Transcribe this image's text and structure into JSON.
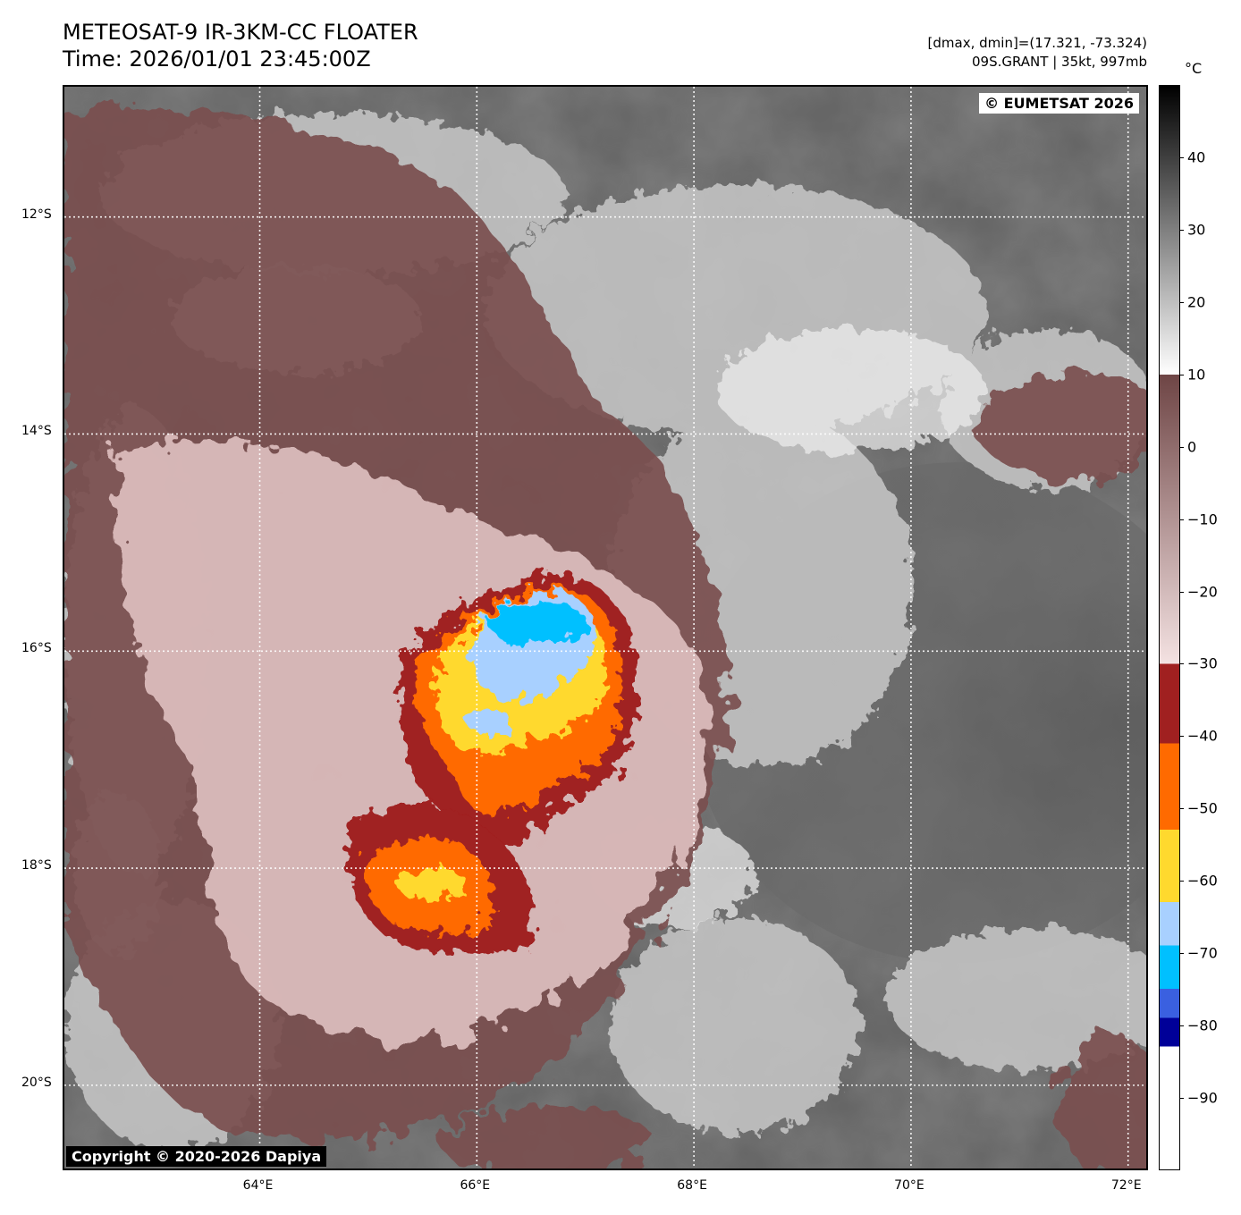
{
  "header": {
    "title": "METEOSAT-9 IR-3KM-CC FLOATER",
    "time": "Time: 2026/01/01 23:45:00Z",
    "range": "[dmax, dmin]=(17.321, -73.324)",
    "storm": "09S.GRANT | 35kt, 997mb"
  },
  "map": {
    "lon_range": [
      62.2,
      72.2
    ],
    "lat_range": [
      -10.8,
      -20.8
    ],
    "lat_ticks": [
      "12°S",
      "14°S",
      "16°S",
      "18°S",
      "20°S"
    ],
    "lat_values": [
      -12,
      -14,
      -16,
      -18,
      -20
    ],
    "lon_ticks": [
      "64°E",
      "66°E",
      "68°E",
      "70°E",
      "72°E"
    ],
    "lon_values": [
      64,
      66,
      68,
      70,
      72
    ],
    "gridlines": "dotted-white",
    "storm_center": {
      "lon": 66.6,
      "lat": -15.8
    }
  },
  "badges": {
    "eumetsat": "© EUMETSAT 2026",
    "dapiya": "Copyright © 2020-2026 Dapiya"
  },
  "colorbar": {
    "unit": "°C",
    "range": [
      -100,
      50
    ],
    "labels": [
      "40",
      "30",
      "20",
      "10",
      "0",
      "−10",
      "−20",
      "−30",
      "−40",
      "−50",
      "−60",
      "−70",
      "−80",
      "−90"
    ],
    "label_values": [
      40,
      30,
      20,
      10,
      0,
      -10,
      -20,
      -30,
      -40,
      -50,
      -60,
      -70,
      -80,
      -90
    ],
    "bands": [
      {
        "from": 50,
        "to": 10,
        "colors": [
          "#000000",
          "#ffffff"
        ]
      },
      {
        "from": 10,
        "to": -30,
        "colors": [
          "#6e4545",
          "#f4e2e2"
        ]
      },
      {
        "from": -30,
        "to": -41,
        "colors": [
          "#a02020",
          "#a02020"
        ]
      },
      {
        "from": -41,
        "to": -53,
        "colors": [
          "#ff6a00",
          "#ff6a00"
        ]
      },
      {
        "from": -53,
        "to": -63,
        "colors": [
          "#ffd92e",
          "#ffd92e"
        ]
      },
      {
        "from": -63,
        "to": -69,
        "colors": [
          "#a8d0ff",
          "#a8d0ff"
        ]
      },
      {
        "from": -69,
        "to": -75,
        "colors": [
          "#00c0ff",
          "#00c0ff"
        ]
      },
      {
        "from": -75,
        "to": -79,
        "colors": [
          "#3a60e0",
          "#3a60e0"
        ]
      },
      {
        "from": -79,
        "to": -83,
        "colors": [
          "#000098",
          "#000098"
        ]
      },
      {
        "from": -83,
        "to": -100,
        "colors": [
          "#ffffff",
          "#ffffff"
        ]
      }
    ]
  }
}
